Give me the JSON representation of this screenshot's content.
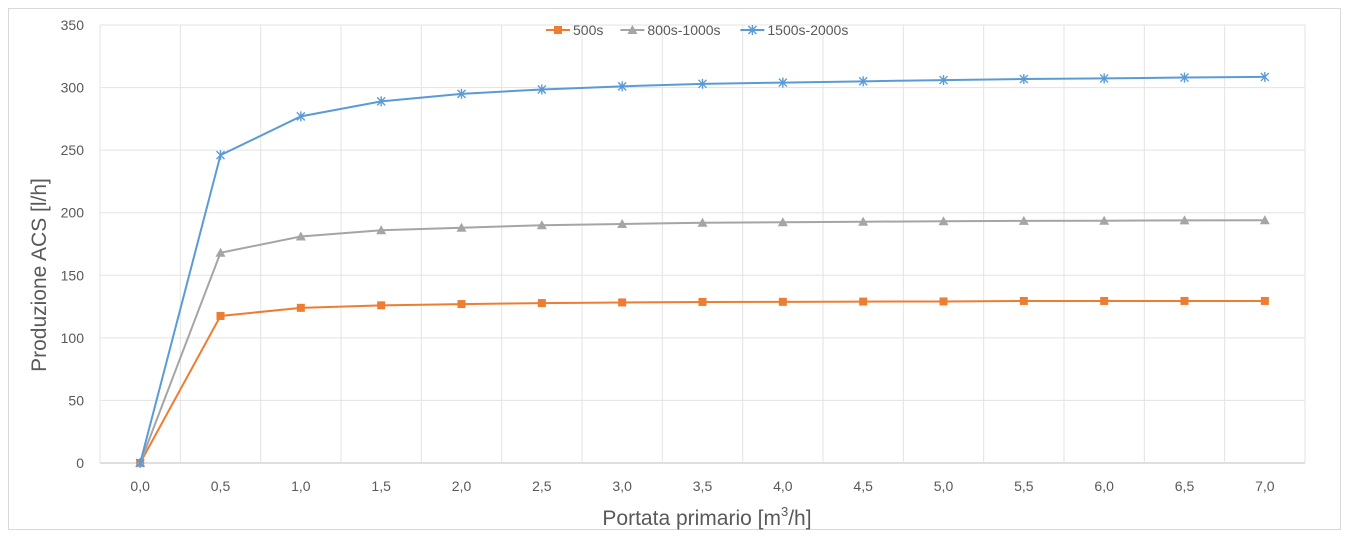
{
  "chart_data": {
    "type": "line",
    "title": "",
    "xlabel": "Portata primario [m",
    "xlabel_sup": "3",
    "xlabel_suffix": "/h]",
    "ylabel": "Produzione ACS [l/h]",
    "ylim": [
      0,
      350
    ],
    "yticks": [
      0,
      50,
      100,
      150,
      200,
      250,
      300,
      350
    ],
    "categories": [
      "0,0",
      "0,5",
      "1,0",
      "1,5",
      "2,0",
      "2,5",
      "3,0",
      "3,5",
      "4,0",
      "4,5",
      "5,0",
      "5,5",
      "6,0",
      "6,5",
      "7,0"
    ],
    "grid": true,
    "legend_position": "top",
    "series": [
      {
        "name": "500s",
        "color": "#ed7d31",
        "marker": "square",
        "values": [
          0,
          117.5,
          124,
          126,
          127,
          127.8,
          128.3,
          128.7,
          128.8,
          129,
          129.1,
          129.5,
          129.5,
          129.5,
          129.5
        ]
      },
      {
        "name": "800s-1000s",
        "color": "#a5a5a5",
        "marker": "triangle",
        "values": [
          0,
          168,
          181,
          186,
          188,
          190,
          191,
          192,
          192.4,
          192.8,
          193.2,
          193.5,
          193.6,
          193.9,
          194
        ]
      },
      {
        "name": "1500s-2000s",
        "color": "#5b9bd5",
        "marker": "star",
        "values": [
          0,
          246,
          277,
          289,
          295,
          298.5,
          301,
          303,
          304,
          305,
          306,
          306.8,
          307.3,
          308,
          308.5
        ]
      }
    ]
  }
}
